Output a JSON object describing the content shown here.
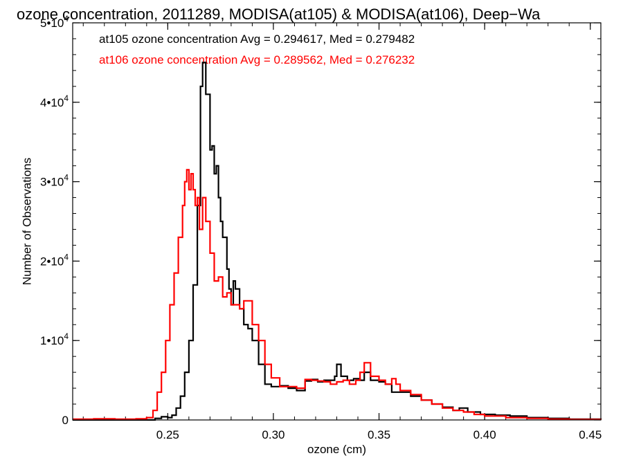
{
  "chart_data": {
    "type": "line",
    "title": "ozone concentration, 2011289, MODISA(at105) & MODISA(at106), Deep−Wa",
    "xlabel": "ozone (cm)",
    "ylabel": "Number of Observations",
    "xlim": [
      0.205,
      0.455
    ],
    "ylim": [
      0,
      50000
    ],
    "x_ticks": [
      {
        "value": 0.25,
        "label": "0.25"
      },
      {
        "value": 0.3,
        "label": "0.30"
      },
      {
        "value": 0.35,
        "label": "0.35"
      },
      {
        "value": 0.4,
        "label": "0.40"
      },
      {
        "value": 0.45,
        "label": "0.45"
      }
    ],
    "y_ticks": [
      {
        "value": 0,
        "base": "0",
        "exp": ""
      },
      {
        "value": 10000,
        "base": "1•10",
        "exp": "4"
      },
      {
        "value": 20000,
        "base": "2•10",
        "exp": "4"
      },
      {
        "value": 30000,
        "base": "3•10",
        "exp": "4"
      },
      {
        "value": 40000,
        "base": "4•10",
        "exp": "4"
      },
      {
        "value": 50000,
        "base": "5•10",
        "exp": "4"
      }
    ],
    "grid": false,
    "legend_position": "top-left",
    "series": [
      {
        "name": "at105",
        "legend": "at105 ozone concentration Avg = 0.294617, Med = 0.279482",
        "color": "#000000",
        "style": "step",
        "x": [
          0.205,
          0.215,
          0.225,
          0.235,
          0.24,
          0.244,
          0.247,
          0.25,
          0.252,
          0.254,
          0.256,
          0.258,
          0.26,
          0.262,
          0.264,
          0.2655,
          0.2665,
          0.268,
          0.27,
          0.271,
          0.272,
          0.273,
          0.274,
          0.275,
          0.276,
          0.278,
          0.279,
          0.28,
          0.281,
          0.282,
          0.284,
          0.286,
          0.288,
          0.29,
          0.293,
          0.296,
          0.299,
          0.303,
          0.307,
          0.311,
          0.315,
          0.318,
          0.321,
          0.324,
          0.327,
          0.329,
          0.33,
          0.332,
          0.335,
          0.338,
          0.341,
          0.343,
          0.346,
          0.35,
          0.353,
          0.356,
          0.36,
          0.365,
          0.37,
          0.375,
          0.38,
          0.385,
          0.388,
          0.392,
          0.398,
          0.405,
          0.412,
          0.42,
          0.43,
          0.44,
          0.455
        ],
        "y": [
          0,
          0,
          0,
          0,
          0,
          200,
          400,
          300,
          600,
          1500,
          3000,
          6000,
          10000,
          17000,
          27000,
          42000,
          45000,
          41000,
          34000,
          34500,
          31000,
          32000,
          28000,
          25000,
          23000,
          19000,
          16500,
          14500,
          17500,
          16500,
          14000,
          12000,
          11500,
          10000,
          7000,
          4500,
          4200,
          4300,
          4000,
          3700,
          4900,
          5100,
          4800,
          5000,
          5000,
          5500,
          7000,
          5500,
          5000,
          5200,
          5000,
          6000,
          5000,
          4800,
          4500,
          3500,
          3500,
          3000,
          2500,
          2000,
          1600,
          1200,
          1500,
          1000,
          700,
          600,
          500,
          300,
          200,
          100,
          50
        ]
      },
      {
        "name": "at106",
        "legend": "at106 ozone concentration Avg = 0.289562, Med = 0.276232",
        "color": "#ff0000",
        "style": "step",
        "x": [
          0.205,
          0.215,
          0.225,
          0.235,
          0.24,
          0.243,
          0.245,
          0.247,
          0.249,
          0.251,
          0.253,
          0.255,
          0.257,
          0.258,
          0.259,
          0.26,
          0.261,
          0.262,
          0.263,
          0.264,
          0.265,
          0.2665,
          0.268,
          0.27,
          0.272,
          0.274,
          0.276,
          0.278,
          0.28,
          0.282,
          0.284,
          0.286,
          0.288,
          0.29,
          0.293,
          0.296,
          0.299,
          0.303,
          0.307,
          0.311,
          0.315,
          0.318,
          0.321,
          0.324,
          0.327,
          0.33,
          0.333,
          0.336,
          0.339,
          0.341,
          0.343,
          0.346,
          0.35,
          0.353,
          0.356,
          0.358,
          0.36,
          0.365,
          0.37,
          0.375,
          0.38,
          0.385,
          0.39,
          0.395,
          0.4,
          0.41,
          0.42,
          0.43,
          0.44,
          0.455
        ],
        "y": [
          100,
          150,
          100,
          150,
          300,
          1200,
          3500,
          6000,
          10000,
          14500,
          18500,
          23000,
          27000,
          30000,
          31500,
          29000,
          31000,
          29000,
          27000,
          28000,
          24000,
          28000,
          25000,
          21000,
          17500,
          18000,
          15500,
          16000,
          14500,
          14500,
          14000,
          15000,
          15000,
          12000,
          10000,
          7000,
          5300,
          4200,
          4200,
          4000,
          5100,
          5000,
          4900,
          4800,
          4500,
          4800,
          5000,
          4500,
          5000,
          6000,
          7200,
          5500,
          5000,
          4500,
          5200,
          4500,
          3700,
          3200,
          2500,
          2000,
          1500,
          1200,
          1000,
          700,
          500,
          300,
          200,
          100,
          50,
          20
        ]
      }
    ]
  }
}
